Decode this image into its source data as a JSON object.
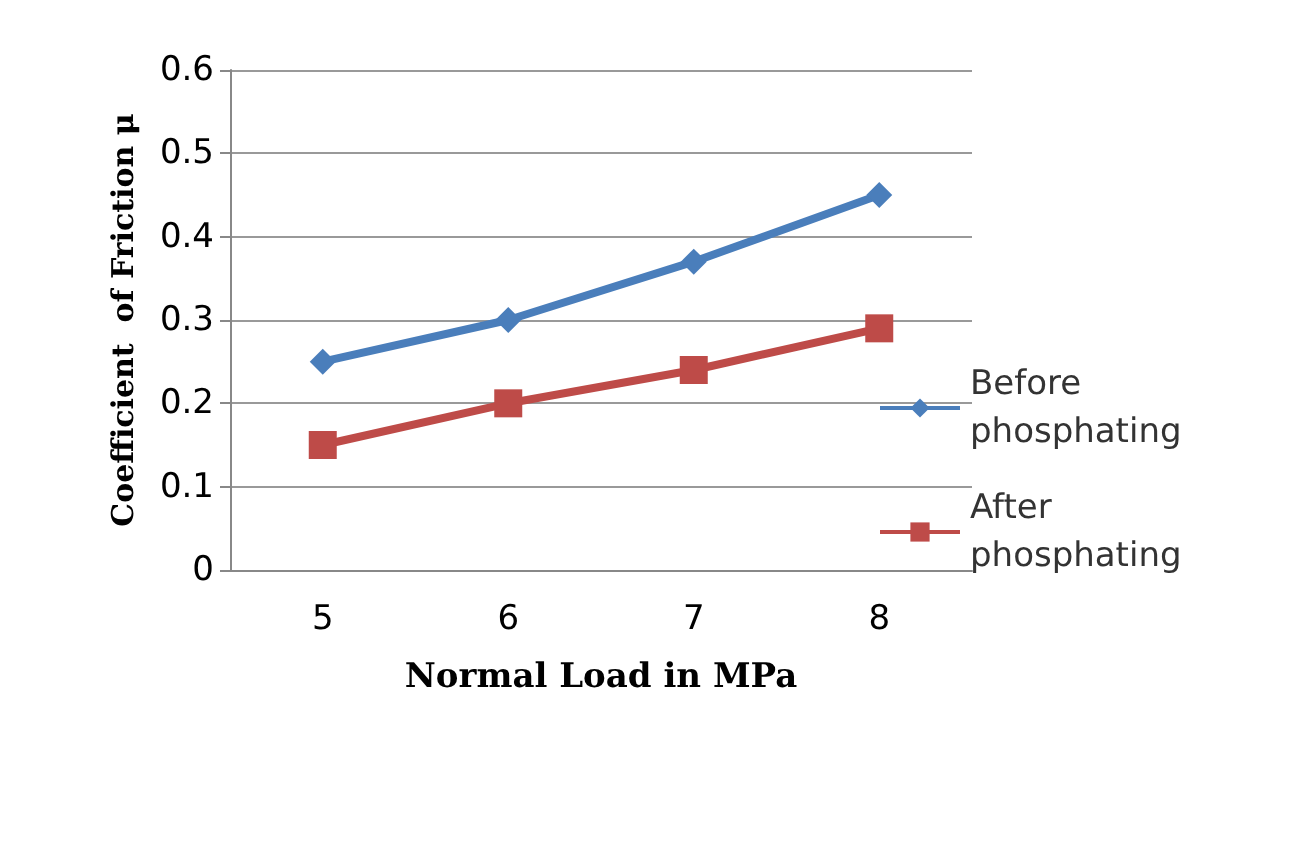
{
  "chart_data": {
    "type": "line",
    "xlabel": "Normal Load in MPa",
    "ylabel": "Coefficient  of Friction μ",
    "categories": [
      "5",
      "6",
      "7",
      "8"
    ],
    "series": [
      {
        "name": "Before phosphating",
        "color": "#4a7ebb",
        "marker": "diamond",
        "values": [
          0.25,
          0.3,
          0.37,
          0.45
        ]
      },
      {
        "name": "After phosphating",
        "color": "#be4b48",
        "marker": "square",
        "values": [
          0.15,
          0.2,
          0.24,
          0.29
        ]
      }
    ],
    "ylim": [
      0,
      0.6
    ],
    "yticks": [
      0,
      0.1,
      0.2,
      0.3,
      0.4,
      0.5,
      0.6
    ],
    "grid": "y",
    "legend": "right"
  }
}
